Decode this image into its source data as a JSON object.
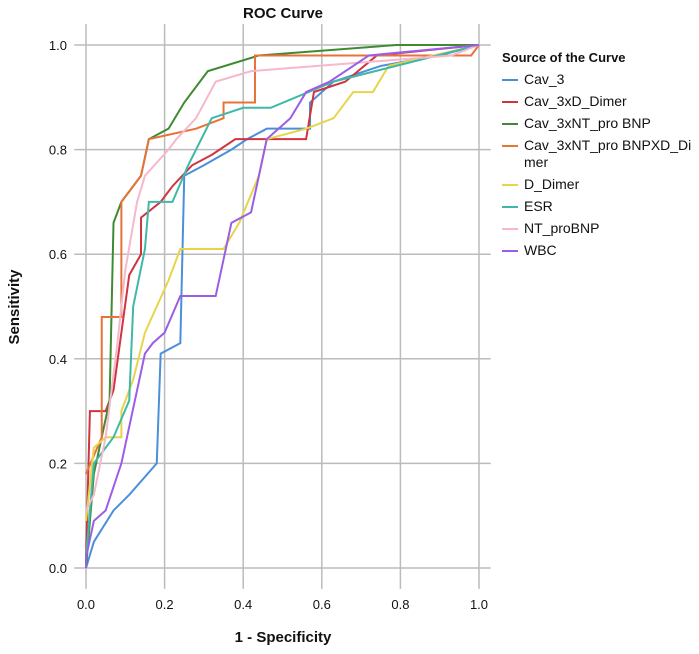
{
  "chart_data": {
    "type": "line",
    "title": "ROC Curve",
    "xlabel": "1 - Specificity",
    "ylabel": "Sensitivity",
    "xlim": [
      0,
      1
    ],
    "ylim": [
      0,
      1
    ],
    "xticks": [
      "0.0",
      "0.2",
      "0.4",
      "0.6",
      "0.8",
      "1.0"
    ],
    "yticks": [
      "0.0",
      "0.2",
      "0.4",
      "0.6",
      "0.8",
      "1.0"
    ],
    "grid": true,
    "legend_title": "Source of the Curve",
    "legend_position": "right",
    "series": [
      {
        "name": "Cav_3",
        "color": "#4a90d9",
        "points": [
          [
            0,
            0
          ],
          [
            0.02,
            0.05
          ],
          [
            0.07,
            0.11
          ],
          [
            0.11,
            0.14
          ],
          [
            0.18,
            0.2
          ],
          [
            0.19,
            0.41
          ],
          [
            0.24,
            0.43
          ],
          [
            0.25,
            0.75
          ],
          [
            0.3,
            0.77
          ],
          [
            0.37,
            0.8
          ],
          [
            0.41,
            0.82
          ],
          [
            0.46,
            0.84
          ],
          [
            0.57,
            0.84
          ],
          [
            0.57,
            0.89
          ],
          [
            0.6,
            0.91
          ],
          [
            0.63,
            0.93
          ],
          [
            0.75,
            0.96
          ],
          [
            0.9,
            0.98
          ],
          [
            1,
            1
          ]
        ]
      },
      {
        "name": "Cav_3xD_Dimer",
        "color": "#d0343f",
        "points": [
          [
            0,
            0.02
          ],
          [
            0.01,
            0.3
          ],
          [
            0.05,
            0.3
          ],
          [
            0.07,
            0.34
          ],
          [
            0.09,
            0.45
          ],
          [
            0.11,
            0.56
          ],
          [
            0.14,
            0.6
          ],
          [
            0.14,
            0.67
          ],
          [
            0.19,
            0.7
          ],
          [
            0.22,
            0.73
          ],
          [
            0.27,
            0.77
          ],
          [
            0.32,
            0.79
          ],
          [
            0.38,
            0.82
          ],
          [
            0.56,
            0.82
          ],
          [
            0.58,
            0.91
          ],
          [
            0.66,
            0.93
          ],
          [
            0.74,
            0.98
          ],
          [
            1,
            1
          ]
        ]
      },
      {
        "name": "Cav_3xNT_pro BNP",
        "color": "#3f8a32",
        "points": [
          [
            0,
            0
          ],
          [
            0.02,
            0.18
          ],
          [
            0.06,
            0.32
          ],
          [
            0.07,
            0.66
          ],
          [
            0.09,
            0.7
          ],
          [
            0.14,
            0.75
          ],
          [
            0.16,
            0.82
          ],
          [
            0.21,
            0.84
          ],
          [
            0.25,
            0.89
          ],
          [
            0.31,
            0.95
          ],
          [
            0.44,
            0.98
          ],
          [
            0.79,
            1
          ],
          [
            1,
            1
          ]
        ]
      },
      {
        "name": "Cav_3xNT_pro BNPXD_Dimer",
        "color": "#e8733a",
        "points": [
          [
            0,
            0.18
          ],
          [
            0.04,
            0.25
          ],
          [
            0.04,
            0.48
          ],
          [
            0.09,
            0.48
          ],
          [
            0.09,
            0.7
          ],
          [
            0.14,
            0.75
          ],
          [
            0.16,
            0.82
          ],
          [
            0.28,
            0.84
          ],
          [
            0.35,
            0.86
          ],
          [
            0.35,
            0.89
          ],
          [
            0.43,
            0.89
          ],
          [
            0.43,
            0.98
          ],
          [
            0.98,
            0.98
          ],
          [
            1,
            1
          ]
        ]
      },
      {
        "name": "D_Dimer",
        "color": "#e8d44a",
        "points": [
          [
            0,
            0.09
          ],
          [
            0.02,
            0.23
          ],
          [
            0.05,
            0.25
          ],
          [
            0.09,
            0.25
          ],
          [
            0.09,
            0.3
          ],
          [
            0.12,
            0.36
          ],
          [
            0.15,
            0.45
          ],
          [
            0.18,
            0.5
          ],
          [
            0.21,
            0.55
          ],
          [
            0.24,
            0.61
          ],
          [
            0.35,
            0.61
          ],
          [
            0.39,
            0.66
          ],
          [
            0.44,
            0.75
          ],
          [
            0.46,
            0.82
          ],
          [
            0.56,
            0.84
          ],
          [
            0.63,
            0.86
          ],
          [
            0.68,
            0.91
          ],
          [
            0.73,
            0.91
          ],
          [
            0.77,
            0.96
          ],
          [
            1,
            1
          ]
        ]
      },
      {
        "name": "ESR",
        "color": "#3fb8a8",
        "points": [
          [
            0,
            0.02
          ],
          [
            0.02,
            0.2
          ],
          [
            0.07,
            0.25
          ],
          [
            0.11,
            0.32
          ],
          [
            0.12,
            0.5
          ],
          [
            0.15,
            0.61
          ],
          [
            0.16,
            0.7
          ],
          [
            0.22,
            0.7
          ],
          [
            0.26,
            0.77
          ],
          [
            0.32,
            0.86
          ],
          [
            0.4,
            0.88
          ],
          [
            0.47,
            0.88
          ],
          [
            0.63,
            0.93
          ],
          [
            1,
            1
          ]
        ]
      },
      {
        "name": "NT_proBNP",
        "color": "#f5b8cc",
        "points": [
          [
            0,
            0.11
          ],
          [
            0.02,
            0.14
          ],
          [
            0.05,
            0.25
          ],
          [
            0.08,
            0.43
          ],
          [
            0.1,
            0.57
          ],
          [
            0.13,
            0.7
          ],
          [
            0.15,
            0.75
          ],
          [
            0.21,
            0.8
          ],
          [
            0.23,
            0.82
          ],
          [
            0.28,
            0.86
          ],
          [
            0.33,
            0.93
          ],
          [
            0.42,
            0.95
          ],
          [
            0.93,
            0.98
          ],
          [
            1,
            1
          ]
        ]
      },
      {
        "name": "WBC",
        "color": "#9b5de5",
        "points": [
          [
            0,
            0
          ],
          [
            0,
            0.02
          ],
          [
            0.02,
            0.09
          ],
          [
            0.05,
            0.11
          ],
          [
            0.09,
            0.2
          ],
          [
            0.11,
            0.27
          ],
          [
            0.13,
            0.34
          ],
          [
            0.15,
            0.41
          ],
          [
            0.17,
            0.43
          ],
          [
            0.2,
            0.45
          ],
          [
            0.24,
            0.52
          ],
          [
            0.33,
            0.52
          ],
          [
            0.35,
            0.59
          ],
          [
            0.37,
            0.66
          ],
          [
            0.42,
            0.68
          ],
          [
            0.44,
            0.75
          ],
          [
            0.46,
            0.82
          ],
          [
            0.52,
            0.86
          ],
          [
            0.56,
            0.91
          ],
          [
            0.62,
            0.93
          ],
          [
            0.72,
            0.98
          ],
          [
            1,
            1
          ]
        ]
      }
    ]
  }
}
